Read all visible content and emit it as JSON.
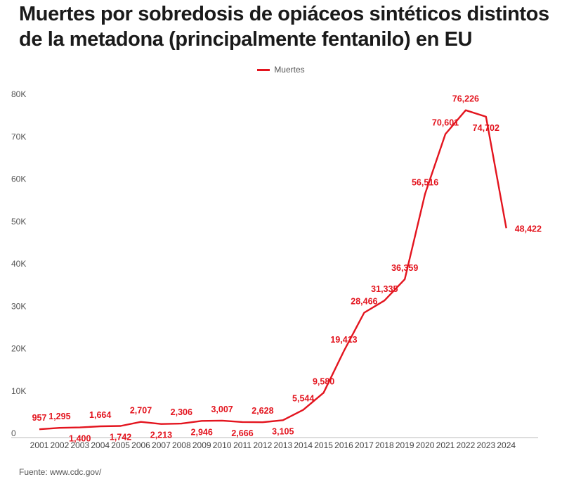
{
  "chart_data": {
    "type": "line",
    "title": "Muertes por sobredosis de opiáceos sintéticos distintos de la metadona (principalmente fentanilo) en EU",
    "xlabel": "",
    "ylabel": "",
    "ylim": [
      0,
      80000
    ],
    "y_ticks": [
      {
        "value": 0,
        "label": "0"
      },
      {
        "value": 10000,
        "label": "10K"
      },
      {
        "value": 20000,
        "label": "20K"
      },
      {
        "value": 30000,
        "label": "30K"
      },
      {
        "value": 40000,
        "label": "40K"
      },
      {
        "value": 50000,
        "label": "50K"
      },
      {
        "value": 60000,
        "label": "60K"
      },
      {
        "value": 70000,
        "label": "70K"
      },
      {
        "value": 80000,
        "label": "80K"
      }
    ],
    "grid": false,
    "legend": {
      "placement": "top-center",
      "entries": [
        "Muertes"
      ]
    },
    "categories": [
      "2001",
      "2002",
      "2003",
      "2004",
      "2005",
      "2006",
      "2007",
      "2008",
      "2009",
      "2010",
      "2011",
      "2012",
      "2013",
      "2014",
      "2015",
      "2016",
      "2017",
      "2018",
      "2019",
      "2020",
      "2021",
      "2022",
      "2023",
      "2024"
    ],
    "series": [
      {
        "name": "Muertes",
        "color": "#e3141e",
        "values": [
          957,
          1295,
          1400,
          1664,
          1742,
          2707,
          2213,
          2306,
          2946,
          3007,
          2666,
          2628,
          3105,
          5544,
          9580,
          19413,
          28466,
          31335,
          36359,
          56516,
          70601,
          76226,
          74702,
          48422
        ],
        "labels": [
          "957",
          "1,295",
          "1,400",
          "1,664",
          "1,742",
          "2,707",
          "2,213",
          "2,306",
          "2,946",
          "3,007",
          "2,666",
          "2,628",
          "3,105",
          "5,544",
          "9,580",
          "19,413",
          "28,466",
          "31,335",
          "36,359",
          "56,516",
          "70,601",
          "76,226",
          "74,702",
          "48,422"
        ],
        "label_side": [
          "above",
          "above",
          "below",
          "above",
          "below",
          "above",
          "below",
          "above",
          "below",
          "above",
          "below",
          "above",
          "below",
          "above",
          "above",
          "above",
          "above",
          "above",
          "above",
          "above",
          "above",
          "above",
          "below",
          "right"
        ]
      }
    ],
    "source": "Fuente: www.cdc.gov/"
  }
}
